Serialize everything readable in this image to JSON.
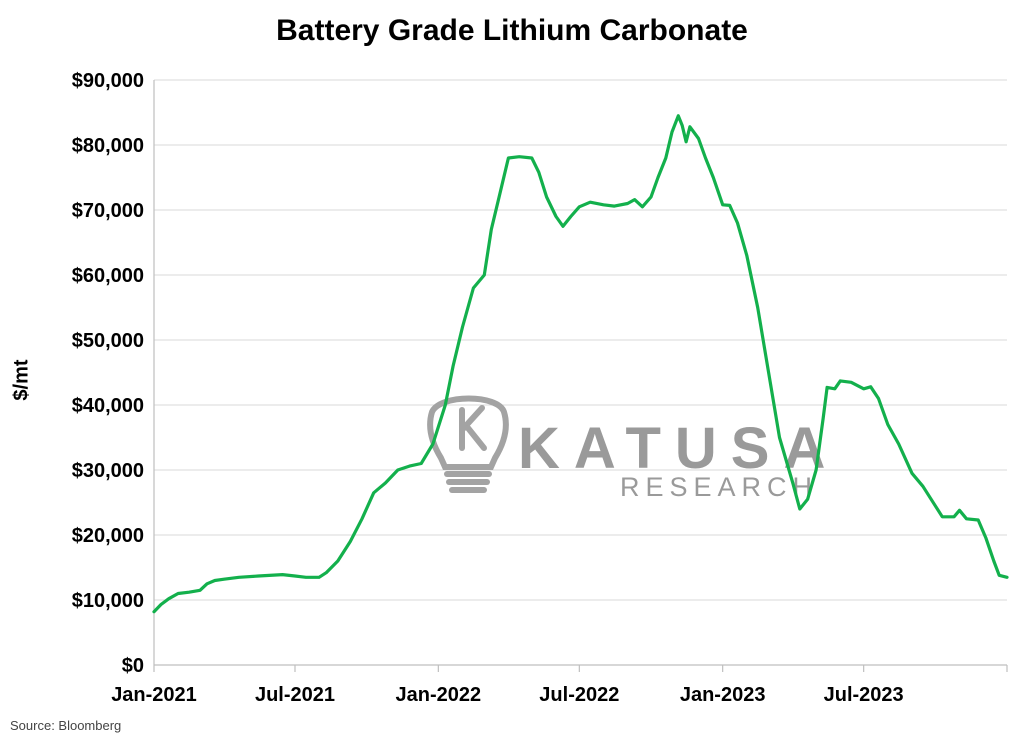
{
  "chart_data": {
    "type": "line",
    "title": "Battery Grade Lithium Carbonate",
    "ylabel": "$/mt",
    "xlabel": "",
    "ylim": [
      0,
      90000
    ],
    "yticks": [
      "$0",
      "$10,000",
      "$20,000",
      "$30,000",
      "$40,000",
      "$50,000",
      "$60,000",
      "$70,000",
      "$80,000",
      "$90,000"
    ],
    "xtick_labels": [
      "Jan-2021",
      "Jul-2021",
      "Jan-2022",
      "Jul-2022",
      "Jan-2023",
      "Jul-2023"
    ],
    "xlim": [
      "2021-01-01",
      "2024-01-01"
    ],
    "grid": "horizontal",
    "series": [
      {
        "color": "#13b04c",
        "points": [
          [
            "2021-01-01",
            8200
          ],
          [
            "2021-01-10",
            9300
          ],
          [
            "2021-01-20",
            10200
          ],
          [
            "2021-02-01",
            11000
          ],
          [
            "2021-02-15",
            11200
          ],
          [
            "2021-03-01",
            11500
          ],
          [
            "2021-03-10",
            12500
          ],
          [
            "2021-03-20",
            13000
          ],
          [
            "2021-04-01",
            13200
          ],
          [
            "2021-04-20",
            13500
          ],
          [
            "2021-05-15",
            13700
          ],
          [
            "2021-06-15",
            13900
          ],
          [
            "2021-07-01",
            13700
          ],
          [
            "2021-07-15",
            13500
          ],
          [
            "2021-08-01",
            13500
          ],
          [
            "2021-08-10",
            14200
          ],
          [
            "2021-08-25",
            16000
          ],
          [
            "2021-09-10",
            19000
          ],
          [
            "2021-09-25",
            22500
          ],
          [
            "2021-10-10",
            26500
          ],
          [
            "2021-10-25",
            28000
          ],
          [
            "2021-11-10",
            30000
          ],
          [
            "2021-11-25",
            30600
          ],
          [
            "2021-12-10",
            31000
          ],
          [
            "2021-12-25",
            34000
          ],
          [
            "2022-01-10",
            40000
          ],
          [
            "2022-01-20",
            46000
          ],
          [
            "2022-02-01",
            52000
          ],
          [
            "2022-02-15",
            58000
          ],
          [
            "2022-03-01",
            60000
          ],
          [
            "2022-03-10",
            67000
          ],
          [
            "2022-03-20",
            72000
          ],
          [
            "2022-04-01",
            78000
          ],
          [
            "2022-04-15",
            78200
          ],
          [
            "2022-05-01",
            78000
          ],
          [
            "2022-05-10",
            75800
          ],
          [
            "2022-05-20",
            72000
          ],
          [
            "2022-06-01",
            69000
          ],
          [
            "2022-06-10",
            67500
          ],
          [
            "2022-06-20",
            69000
          ],
          [
            "2022-07-01",
            70500
          ],
          [
            "2022-07-15",
            71200
          ],
          [
            "2022-08-01",
            70800
          ],
          [
            "2022-08-15",
            70600
          ],
          [
            "2022-09-01",
            71000
          ],
          [
            "2022-09-10",
            71600
          ],
          [
            "2022-09-20",
            70500
          ],
          [
            "2022-10-01",
            72000
          ],
          [
            "2022-10-10",
            75000
          ],
          [
            "2022-10-20",
            78000
          ],
          [
            "2022-10-28",
            82000
          ],
          [
            "2022-11-05",
            84500
          ],
          [
            "2022-11-10",
            83000
          ],
          [
            "2022-11-15",
            80500
          ],
          [
            "2022-11-20",
            82800
          ],
          [
            "2022-12-01",
            81000
          ],
          [
            "2022-12-10",
            78000
          ],
          [
            "2022-12-20",
            75000
          ],
          [
            "2023-01-01",
            70800
          ],
          [
            "2023-01-10",
            70700
          ],
          [
            "2023-01-20",
            68000
          ],
          [
            "2023-02-01",
            63000
          ],
          [
            "2023-02-15",
            55000
          ],
          [
            "2023-03-01",
            45000
          ],
          [
            "2023-03-15",
            35000
          ],
          [
            "2023-04-01",
            28000
          ],
          [
            "2023-04-10",
            24000
          ],
          [
            "2023-04-20",
            25500
          ],
          [
            "2023-05-01",
            30000
          ],
          [
            "2023-05-10",
            38000
          ],
          [
            "2023-05-15",
            42700
          ],
          [
            "2023-05-25",
            42500
          ],
          [
            "2023-06-01",
            43700
          ],
          [
            "2023-06-15",
            43500
          ],
          [
            "2023-07-01",
            42500
          ],
          [
            "2023-07-10",
            42800
          ],
          [
            "2023-07-20",
            41000
          ],
          [
            "2023-08-01",
            37000
          ],
          [
            "2023-08-15",
            34000
          ],
          [
            "2023-09-01",
            29500
          ],
          [
            "2023-09-15",
            27500
          ],
          [
            "2023-10-01",
            24500
          ],
          [
            "2023-10-10",
            22800
          ],
          [
            "2023-10-25",
            22800
          ],
          [
            "2023-11-01",
            23800
          ],
          [
            "2023-11-10",
            22500
          ],
          [
            "2023-11-25",
            22300
          ],
          [
            "2023-12-05",
            19500
          ],
          [
            "2023-12-15",
            16000
          ],
          [
            "2023-12-22",
            13800
          ],
          [
            "2024-01-01",
            13500
          ]
        ]
      }
    ]
  },
  "watermark": {
    "line1": "KATUSA",
    "line2": "RESEARCH"
  },
  "source": "Source: Bloomberg"
}
